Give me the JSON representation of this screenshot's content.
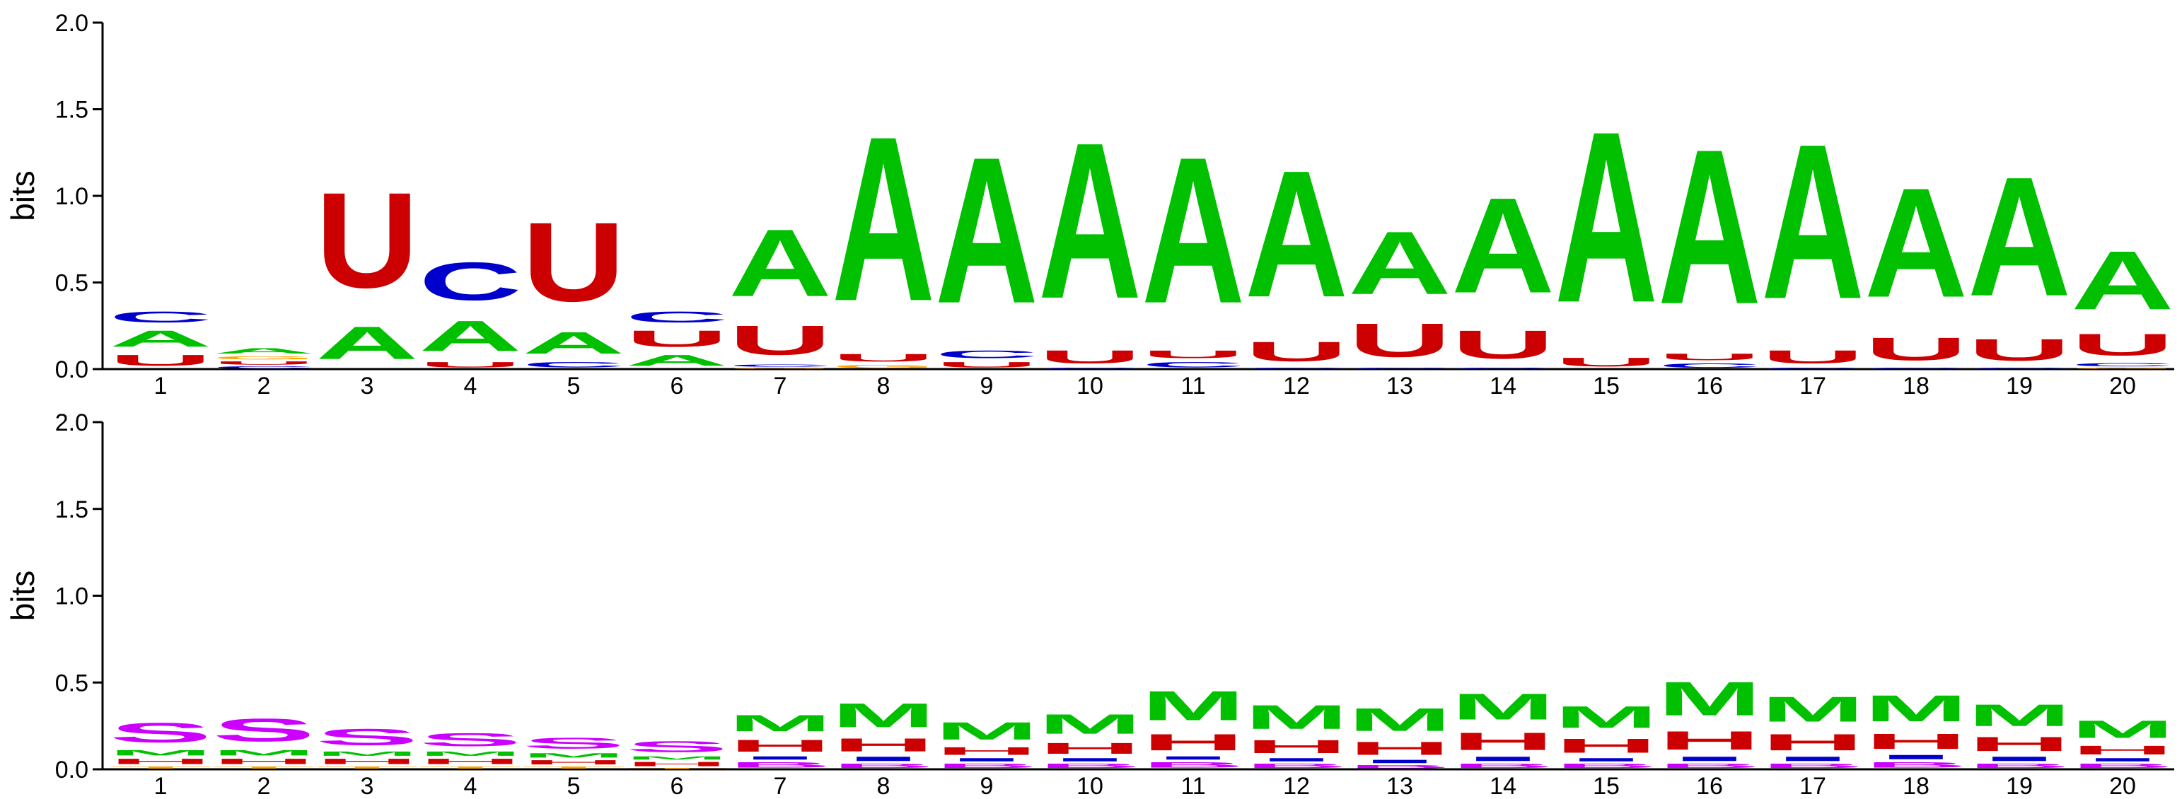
{
  "colors": {
    "A": "#00c000",
    "C": "#0000cc",
    "G": "#ffa500",
    "U": "#cc0000",
    "S": "#cc00ff",
    "M": "#00c000",
    "H": "#cc0000",
    "I": "#0000cc",
    "T": "#ffa500",
    "B": "#cc00ff"
  },
  "chart_data": [
    {
      "type": "sequence-logo",
      "ylabel": "bits",
      "ylim": [
        0,
        2.0
      ],
      "yticks": [
        "0.0",
        "0.5",
        "1.0",
        "1.5",
        "2.0"
      ],
      "positions": [
        "1",
        "2",
        "3",
        "4",
        "5",
        "6",
        "7",
        "8",
        "9",
        "10",
        "11",
        "12",
        "13",
        "14",
        "15",
        "16",
        "17",
        "18",
        "19",
        "20"
      ],
      "stacks": [
        [
          [
            "U",
            0.1
          ],
          [
            "A",
            0.15
          ],
          [
            "C",
            0.1
          ]
        ],
        [
          [
            "C",
            0.02
          ],
          [
            "U",
            0.03
          ],
          [
            "G",
            0.03
          ],
          [
            "A",
            0.05
          ]
        ],
        [
          [
            "A",
            0.3
          ],
          [
            "U",
            0.88
          ]
        ],
        [
          [
            "U",
            0.05
          ],
          [
            "A",
            0.28
          ],
          [
            "C",
            0.35
          ]
        ],
        [
          [
            "C",
            0.05
          ],
          [
            "A",
            0.2
          ],
          [
            "U",
            0.73
          ]
        ],
        [
          [
            "A",
            0.1
          ],
          [
            "U",
            0.15
          ],
          [
            "C",
            0.1
          ]
        ],
        [
          [
            "G",
            0.01
          ],
          [
            "C",
            0.02
          ],
          [
            "U",
            0.27
          ],
          [
            "A",
            0.62
          ]
        ],
        [
          [
            "G",
            0.03
          ],
          [
            "U",
            0.07
          ],
          [
            "A",
            1.52
          ]
        ],
        [
          [
            "U",
            0.05
          ],
          [
            "C",
            0.07
          ],
          [
            "A",
            1.35
          ]
        ],
        [
          [
            "C",
            0.01
          ],
          [
            "U",
            0.12
          ],
          [
            "A",
            1.44
          ]
        ],
        [
          [
            "C",
            0.05
          ],
          [
            "U",
            0.07
          ],
          [
            "A",
            1.35
          ]
        ],
        [
          [
            "C",
            0.01
          ],
          [
            "U",
            0.18
          ],
          [
            "A",
            1.17
          ]
        ],
        [
          [
            "C",
            0.01
          ],
          [
            "U",
            0.31
          ],
          [
            "A",
            0.58
          ]
        ],
        [
          [
            "C",
            0.01
          ],
          [
            "U",
            0.26
          ],
          [
            "A",
            0.88
          ]
        ],
        [
          [
            "U",
            0.08
          ],
          [
            "A",
            1.58
          ]
        ],
        [
          [
            "C",
            0.04
          ],
          [
            "U",
            0.06
          ],
          [
            "A",
            1.43
          ]
        ],
        [
          [
            "C",
            0.01
          ],
          [
            "U",
            0.12
          ],
          [
            "A",
            1.43
          ]
        ],
        [
          [
            "C",
            0.01
          ],
          [
            "U",
            0.21
          ],
          [
            "A",
            1.01
          ]
        ],
        [
          [
            "C",
            0.01
          ],
          [
            "U",
            0.2
          ],
          [
            "A",
            1.1
          ]
        ],
        [
          [
            "G",
            0.01
          ],
          [
            "C",
            0.03
          ],
          [
            "U",
            0.2
          ],
          [
            "A",
            0.54
          ]
        ]
      ]
    },
    {
      "type": "sequence-logo",
      "ylabel": "bits",
      "ylim": [
        0,
        2.0
      ],
      "yticks": [
        "0.0",
        "0.5",
        "1.0",
        "1.5",
        "2.0"
      ],
      "positions": [
        "1",
        "2",
        "3",
        "4",
        "5",
        "6",
        "7",
        "8",
        "9",
        "10",
        "11",
        "12",
        "13",
        "14",
        "15",
        "16",
        "17",
        "18",
        "19",
        "20"
      ],
      "stacks": [
        [
          [
            "T",
            0.02
          ],
          [
            "H",
            0.05
          ],
          [
            "M",
            0.05
          ],
          [
            "S",
            0.18
          ]
        ],
        [
          [
            "T",
            0.02
          ],
          [
            "H",
            0.05
          ],
          [
            "M",
            0.05
          ],
          [
            "S",
            0.21
          ]
        ],
        [
          [
            "T",
            0.02
          ],
          [
            "H",
            0.05
          ],
          [
            "M",
            0.04
          ],
          [
            "S",
            0.15
          ]
        ],
        [
          [
            "T",
            0.02
          ],
          [
            "H",
            0.05
          ],
          [
            "M",
            0.04
          ],
          [
            "S",
            0.12
          ]
        ],
        [
          [
            "T",
            0.02
          ],
          [
            "H",
            0.04
          ],
          [
            "M",
            0.04
          ],
          [
            "S",
            0.1
          ]
        ],
        [
          [
            "T",
            0.01
          ],
          [
            "H",
            0.04
          ],
          [
            "M",
            0.03
          ],
          [
            "S",
            0.1
          ]
        ],
        [
          [
            "B",
            0.05
          ],
          [
            "I",
            0.03
          ],
          [
            "H",
            0.11
          ],
          [
            "M",
            0.15
          ]
        ],
        [
          [
            "B",
            0.04
          ],
          [
            "I",
            0.04
          ],
          [
            "H",
            0.12
          ],
          [
            "M",
            0.22
          ]
        ],
        [
          [
            "B",
            0.04
          ],
          [
            "I",
            0.03
          ],
          [
            "H",
            0.07
          ],
          [
            "M",
            0.16
          ]
        ],
        [
          [
            "B",
            0.04
          ],
          [
            "I",
            0.03
          ],
          [
            "H",
            0.1
          ],
          [
            "M",
            0.18
          ]
        ],
        [
          [
            "B",
            0.05
          ],
          [
            "I",
            0.03
          ],
          [
            "H",
            0.15
          ],
          [
            "M",
            0.27
          ]
        ],
        [
          [
            "B",
            0.04
          ],
          [
            "I",
            0.03
          ],
          [
            "H",
            0.12
          ],
          [
            "M",
            0.22
          ]
        ],
        [
          [
            "B",
            0.03
          ],
          [
            "I",
            0.03
          ],
          [
            "H",
            0.12
          ],
          [
            "M",
            0.21
          ]
        ],
        [
          [
            "B",
            0.04
          ],
          [
            "I",
            0.04
          ],
          [
            "H",
            0.16
          ],
          [
            "M",
            0.24
          ]
        ],
        [
          [
            "B",
            0.04
          ],
          [
            "I",
            0.03
          ],
          [
            "H",
            0.13
          ],
          [
            "M",
            0.2
          ]
        ],
        [
          [
            "B",
            0.04
          ],
          [
            "I",
            0.04
          ],
          [
            "H",
            0.17
          ],
          [
            "M",
            0.31
          ]
        ],
        [
          [
            "B",
            0.04
          ],
          [
            "I",
            0.04
          ],
          [
            "H",
            0.15
          ],
          [
            "M",
            0.23
          ]
        ],
        [
          [
            "B",
            0.05
          ],
          [
            "I",
            0.04
          ],
          [
            "H",
            0.14
          ],
          [
            "M",
            0.24
          ]
        ],
        [
          [
            "B",
            0.04
          ],
          [
            "I",
            0.04
          ],
          [
            "H",
            0.13
          ],
          [
            "M",
            0.2
          ]
        ],
        [
          [
            "B",
            0.04
          ],
          [
            "I",
            0.03
          ],
          [
            "H",
            0.08
          ],
          [
            "M",
            0.16
          ]
        ]
      ]
    }
  ]
}
